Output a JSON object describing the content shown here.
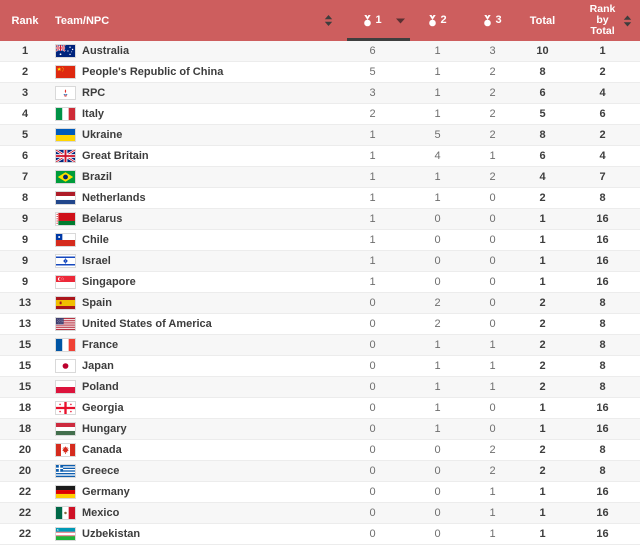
{
  "colors": {
    "header_bg": "#cd5e5e",
    "header_text": "#ffffff",
    "row_alt_bg": "#f7f7f7",
    "row_bg": "#ffffff",
    "text_dark": "#3d3d3d",
    "medal_value_text": "#6e6e6e",
    "active_sort_underline": "#3f3f3f",
    "row_divider": "#ececec"
  },
  "icons": {
    "sort": "⇕",
    "caret_down": "▼",
    "medal": "🏅"
  },
  "header": {
    "rank": "Rank",
    "team": "Team/NPC",
    "medal1": "1",
    "medal2": "2",
    "medal3": "3",
    "total": "Total",
    "rank_by_total": "Rank by Total"
  },
  "sort_state": {
    "active_column": "medal1",
    "direction": "desc"
  },
  "rows": [
    {
      "rank": "1",
      "flag": "au",
      "team": "Australia",
      "gold": 6,
      "silver": 1,
      "bronze": 3,
      "total": 10,
      "rank_by_total": 1
    },
    {
      "rank": "2",
      "flag": "cn",
      "team": "People's Republic of China",
      "gold": 5,
      "silver": 1,
      "bronze": 2,
      "total": 8,
      "rank_by_total": 2
    },
    {
      "rank": "3",
      "flag": "rpc",
      "team": "RPC",
      "gold": 3,
      "silver": 1,
      "bronze": 2,
      "total": 6,
      "rank_by_total": 4
    },
    {
      "rank": "4",
      "flag": "it",
      "team": "Italy",
      "gold": 2,
      "silver": 1,
      "bronze": 2,
      "total": 5,
      "rank_by_total": 6
    },
    {
      "rank": "5",
      "flag": "ua",
      "team": "Ukraine",
      "gold": 1,
      "silver": 5,
      "bronze": 2,
      "total": 8,
      "rank_by_total": 2
    },
    {
      "rank": "6",
      "flag": "gb",
      "team": "Great Britain",
      "gold": 1,
      "silver": 4,
      "bronze": 1,
      "total": 6,
      "rank_by_total": 4
    },
    {
      "rank": "7",
      "flag": "br",
      "team": "Brazil",
      "gold": 1,
      "silver": 1,
      "bronze": 2,
      "total": 4,
      "rank_by_total": 7
    },
    {
      "rank": "8",
      "flag": "nl",
      "team": "Netherlands",
      "gold": 1,
      "silver": 1,
      "bronze": 0,
      "total": 2,
      "rank_by_total": 8
    },
    {
      "rank": "9",
      "flag": "by",
      "team": "Belarus",
      "gold": 1,
      "silver": 0,
      "bronze": 0,
      "total": 1,
      "rank_by_total": 16
    },
    {
      "rank": "9",
      "flag": "cl",
      "team": "Chile",
      "gold": 1,
      "silver": 0,
      "bronze": 0,
      "total": 1,
      "rank_by_total": 16
    },
    {
      "rank": "9",
      "flag": "il",
      "team": "Israel",
      "gold": 1,
      "silver": 0,
      "bronze": 0,
      "total": 1,
      "rank_by_total": 16
    },
    {
      "rank": "9",
      "flag": "sg",
      "team": "Singapore",
      "gold": 1,
      "silver": 0,
      "bronze": 0,
      "total": 1,
      "rank_by_total": 16
    },
    {
      "rank": "13",
      "flag": "es",
      "team": "Spain",
      "gold": 0,
      "silver": 2,
      "bronze": 0,
      "total": 2,
      "rank_by_total": 8
    },
    {
      "rank": "13",
      "flag": "us",
      "team": "United States of America",
      "gold": 0,
      "silver": 2,
      "bronze": 0,
      "total": 2,
      "rank_by_total": 8
    },
    {
      "rank": "15",
      "flag": "fr",
      "team": "France",
      "gold": 0,
      "silver": 1,
      "bronze": 1,
      "total": 2,
      "rank_by_total": 8
    },
    {
      "rank": "15",
      "flag": "jp",
      "team": "Japan",
      "gold": 0,
      "silver": 1,
      "bronze": 1,
      "total": 2,
      "rank_by_total": 8
    },
    {
      "rank": "15",
      "flag": "pl",
      "team": "Poland",
      "gold": 0,
      "silver": 1,
      "bronze": 1,
      "total": 2,
      "rank_by_total": 8
    },
    {
      "rank": "18",
      "flag": "ge",
      "team": "Georgia",
      "gold": 0,
      "silver": 1,
      "bronze": 0,
      "total": 1,
      "rank_by_total": 16
    },
    {
      "rank": "18",
      "flag": "hu",
      "team": "Hungary",
      "gold": 0,
      "silver": 1,
      "bronze": 0,
      "total": 1,
      "rank_by_total": 16
    },
    {
      "rank": "20",
      "flag": "ca",
      "team": "Canada",
      "gold": 0,
      "silver": 0,
      "bronze": 2,
      "total": 2,
      "rank_by_total": 8
    },
    {
      "rank": "20",
      "flag": "gr",
      "team": "Greece",
      "gold": 0,
      "silver": 0,
      "bronze": 2,
      "total": 2,
      "rank_by_total": 8
    },
    {
      "rank": "22",
      "flag": "de",
      "team": "Germany",
      "gold": 0,
      "silver": 0,
      "bronze": 1,
      "total": 1,
      "rank_by_total": 16
    },
    {
      "rank": "22",
      "flag": "mx",
      "team": "Mexico",
      "gold": 0,
      "silver": 0,
      "bronze": 1,
      "total": 1,
      "rank_by_total": 16
    },
    {
      "rank": "22",
      "flag": "uz",
      "team": "Uzbekistan",
      "gold": 0,
      "silver": 0,
      "bronze": 1,
      "total": 1,
      "rank_by_total": 16
    }
  ]
}
